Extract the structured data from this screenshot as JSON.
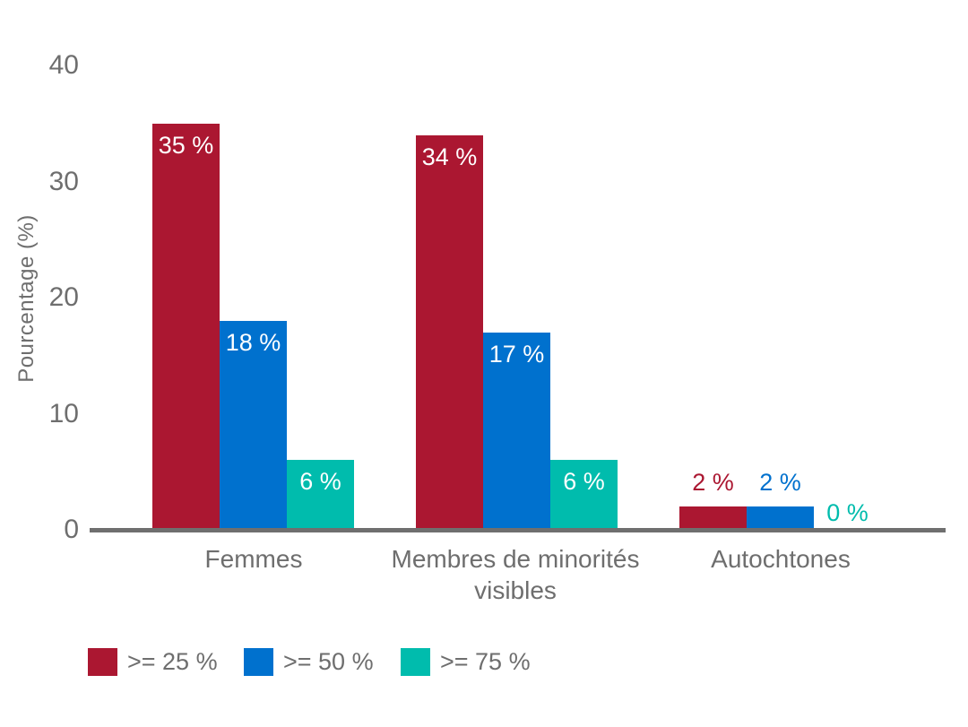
{
  "chart_data": {
    "type": "bar",
    "title": "",
    "xlabel": "",
    "ylabel": "Pourcentage (%)",
    "ylim": [
      0,
      40
    ],
    "yticks": [
      0,
      10,
      20,
      30,
      40
    ],
    "grid": false,
    "legend_position": "bottom",
    "background_color": "#FFFFFF",
    "axis_color": "#6F6F6F",
    "text_color": "#6E6E6E",
    "inside_label_color": "#FFFFFF",
    "categories": [
      "Femmes",
      "Membres de minorités visibles",
      "Autochtones"
    ],
    "series": [
      {
        "name": ">= 25 %",
        "color": "#AB1731",
        "values": [
          35,
          34,
          2
        ],
        "value_labels": [
          "35 %",
          "34 %",
          "2 %"
        ]
      },
      {
        "name": ">= 50 %",
        "color": "#0071CE",
        "values": [
          18,
          17,
          2
        ],
        "value_labels": [
          "18 %",
          "17 %",
          "2 %"
        ]
      },
      {
        "name": ">= 75 %",
        "color": "#00BCAD",
        "values": [
          6,
          6,
          0
        ],
        "value_labels": [
          "6 %",
          "6 %",
          "0 %"
        ]
      }
    ]
  }
}
